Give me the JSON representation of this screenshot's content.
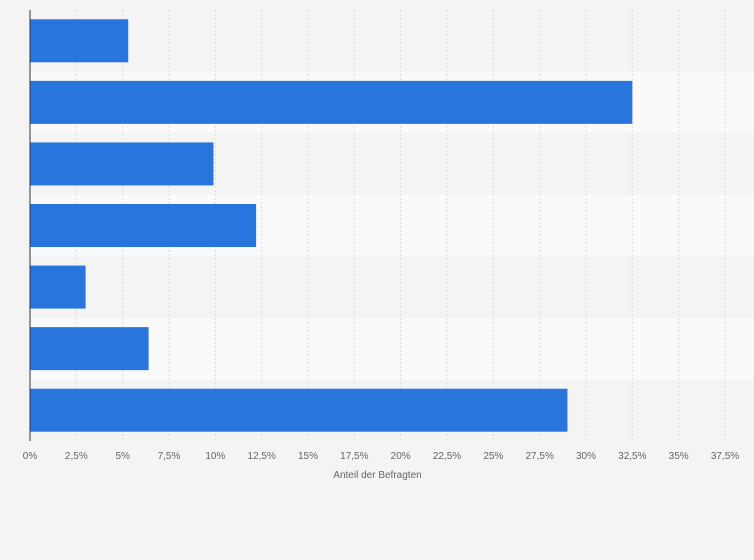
{
  "chart_data": {
    "type": "bar",
    "orientation": "horizontal",
    "categories": [
      "",
      "",
      "",
      "",
      "",
      "",
      ""
    ],
    "values": [
      5.3,
      32.5,
      9.9,
      12.2,
      3.0,
      6.4,
      29.0
    ],
    "xlabel": "Anteil der Befragten",
    "xlim": [
      0,
      37.5
    ],
    "x_ticks": [
      0,
      2.5,
      5,
      7.5,
      10,
      12.5,
      15,
      17.5,
      20,
      22.5,
      25,
      27.5,
      30,
      32.5,
      35,
      37.5
    ],
    "x_tick_labels": [
      "0%",
      "2,5%",
      "5%",
      "7,5%",
      "10%",
      "12,5%",
      "15%",
      "17,5%",
      "20%",
      "22,5%",
      "25%",
      "27,5%",
      "30%",
      "32,5%",
      "35%",
      "37,5%"
    ],
    "grid": "vertical",
    "bar_color": "#2876dd",
    "row_band_colors": [
      "#f4f4f4",
      "#fafafa"
    ]
  }
}
